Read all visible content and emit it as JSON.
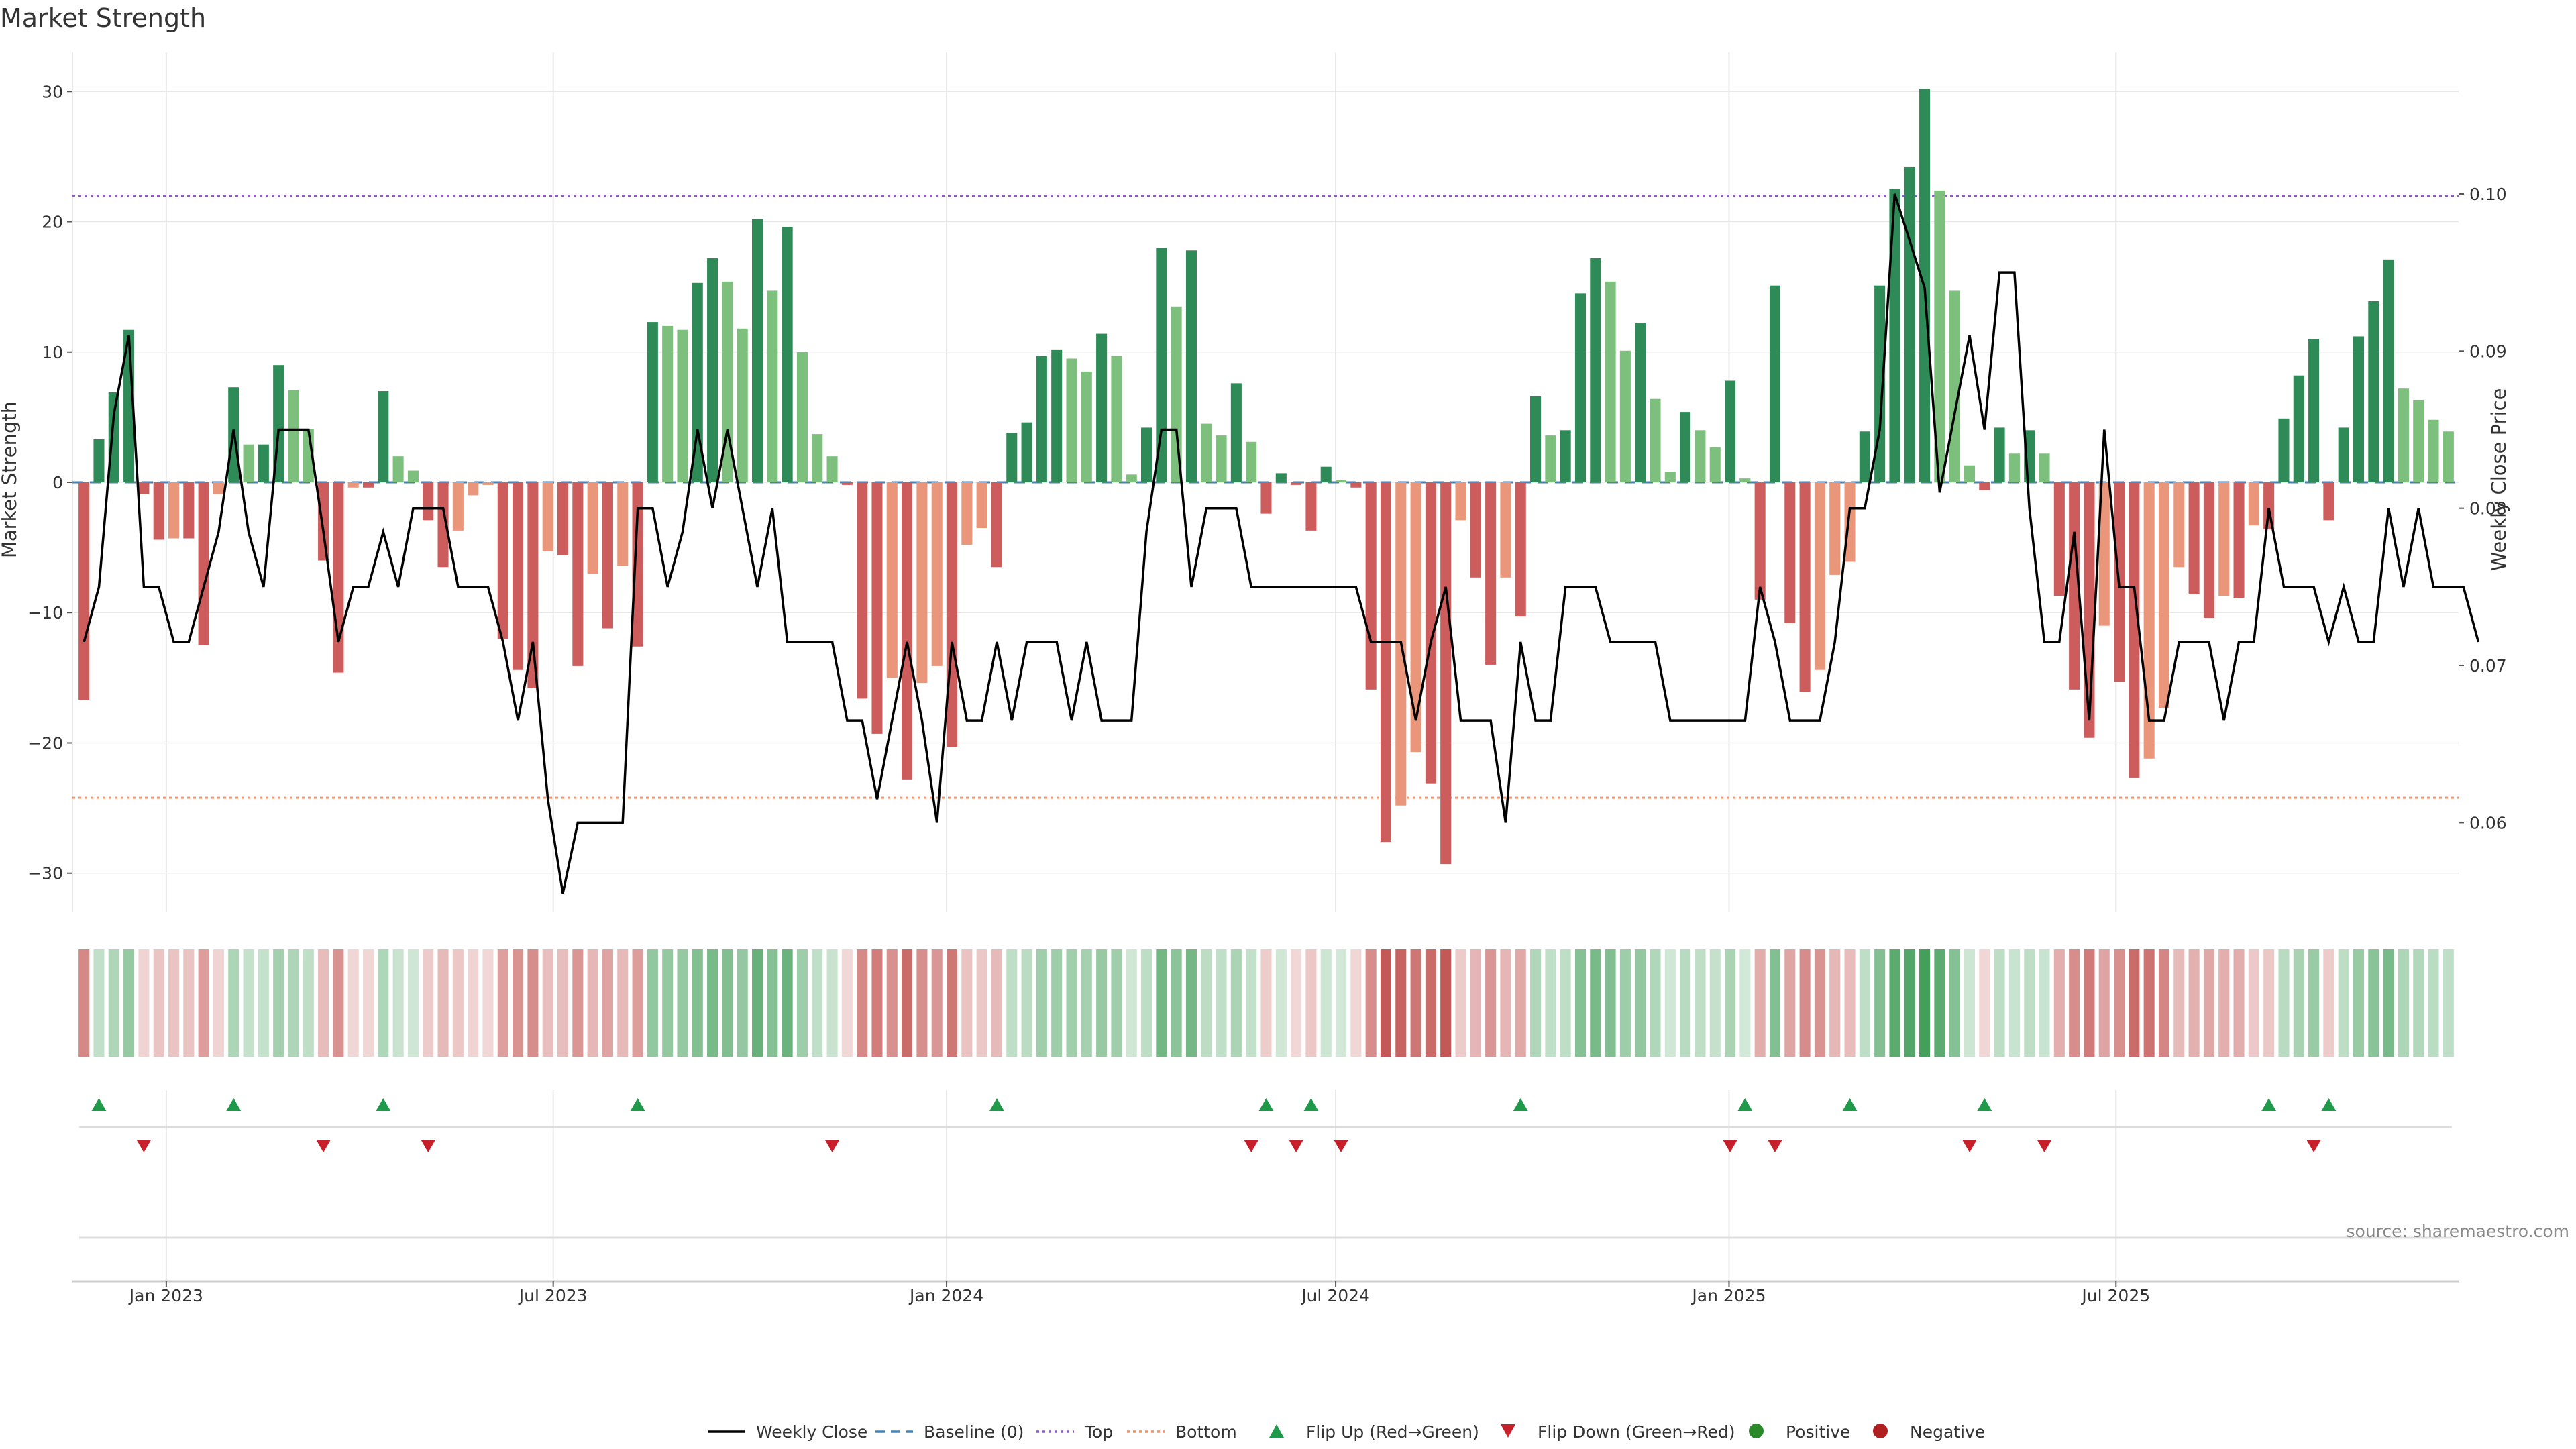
{
  "chart_data": {
    "type": "bar",
    "title": "Market Strength",
    "ylabel": "Market Strength",
    "y2label": "Weekly Close Price",
    "ylim": [
      -33,
      33
    ],
    "y2lim": [
      0.0543,
      0.109
    ],
    "yticks": [
      30,
      20,
      10,
      0,
      -10,
      -20,
      -30
    ],
    "ytick_labels": [
      "30",
      "20",
      "10",
      "0",
      "−10",
      "−20",
      "−30"
    ],
    "y2ticks": [
      0.1,
      0.09,
      0.08,
      0.07,
      0.06
    ],
    "y2tick_labels": [
      "0.10",
      "0.09",
      "0.08",
      "0.07",
      "0.06"
    ],
    "x_start": "2022-11-20",
    "week_days": 7,
    "xticks": [
      {
        "label": "Jan 2023",
        "day": 42
      },
      {
        "label": "Jul 2023",
        "day": 223
      },
      {
        "label": "Jan 2024",
        "day": 407
      },
      {
        "label": "Jul 2024",
        "day": 589
      },
      {
        "label": "Jan 2025",
        "day": 773
      },
      {
        "label": "Jul 2025",
        "day": 954
      }
    ],
    "top_level": 22,
    "bottom_level": -24.2,
    "strength_values": [
      -16.7,
      3.3,
      6.9,
      11.7,
      -0.9,
      -4.4,
      -4.3,
      -4.3,
      -12.5,
      -0.9,
      7.3,
      2.9,
      2.9,
      9.0,
      7.1,
      4.1,
      -6.0,
      -14.6,
      -0.4,
      -0.4,
      7.0,
      2.0,
      0.9,
      -2.9,
      -6.5,
      -3.7,
      -1.0,
      -0.2,
      -12.0,
      -14.4,
      -15.8,
      -5.3,
      -5.6,
      -14.1,
      -7.0,
      -11.2,
      -6.4,
      -12.6,
      12.3,
      12.0,
      11.7,
      15.3,
      17.2,
      15.4,
      11.8,
      20.2,
      14.7,
      19.6,
      10.0,
      3.7,
      2.0,
      -0.2,
      -16.6,
      -19.3,
      -15.0,
      -22.8,
      -15.4,
      -14.1,
      -20.3,
      -4.8,
      -3.5,
      -6.5,
      3.8,
      4.6,
      9.7,
      10.2,
      9.5,
      8.5,
      11.4,
      9.7,
      0.6,
      4.2,
      18.0,
      13.5,
      17.8,
      4.5,
      3.6,
      7.6,
      3.1,
      -2.4,
      0.7,
      -0.2,
      -3.7,
      1.2,
      0.2,
      -0.4,
      -15.9,
      -27.6,
      -24.8,
      -20.7,
      -23.1,
      -29.3,
      -2.9,
      -7.3,
      -14.0,
      -7.3,
      -10.3,
      6.6,
      3.6,
      4.0,
      14.5,
      17.2,
      15.4,
      10.1,
      12.2,
      6.4,
      0.8,
      5.4,
      4.0,
      2.7,
      7.8,
      0.3,
      -9.0,
      15.1,
      -10.8,
      -16.1,
      -14.4,
      -7.1,
      -6.1,
      3.9,
      15.1,
      22.5,
      24.2,
      30.2,
      22.4,
      14.7,
      1.3,
      -0.6,
      4.2,
      2.2,
      4.0,
      2.2,
      -8.7,
      -15.9,
      -19.6,
      -11.0,
      -15.3,
      -22.7,
      -21.2,
      -17.3,
      -6.5,
      -8.6,
      -10.4,
      -8.7,
      -8.9,
      -3.3,
      -3.6,
      4.9,
      8.2,
      11.0,
      -2.9,
      4.2,
      11.2,
      13.9,
      17.1,
      7.2,
      6.3,
      4.8,
      3.9
    ],
    "weekly_close": [
      0.0715,
      0.075,
      0.086,
      0.091,
      0.075,
      0.075,
      0.0715,
      0.0715,
      0.075,
      0.0785,
      0.085,
      0.0785,
      0.075,
      0.085,
      0.085,
      0.085,
      0.0785,
      0.0715,
      0.075,
      0.075,
      0.0785,
      0.075,
      0.08,
      0.08,
      0.08,
      0.075,
      0.075,
      0.075,
      0.0715,
      0.0665,
      0.0715,
      0.0615,
      0.0555,
      0.06,
      0.06,
      0.06,
      0.06,
      0.08,
      0.08,
      0.075,
      0.0785,
      0.085,
      0.08,
      0.085,
      0.08,
      0.075,
      0.08,
      0.0715,
      0.0715,
      0.0715,
      0.0715,
      0.0665,
      0.0665,
      0.0615,
      0.0665,
      0.0715,
      0.0665,
      0.06,
      0.0715,
      0.0665,
      0.0665,
      0.0715,
      0.0665,
      0.0715,
      0.0715,
      0.0715,
      0.0665,
      0.0715,
      0.0665,
      0.0665,
      0.0665,
      0.0785,
      0.085,
      0.085,
      0.075,
      0.08,
      0.08,
      0.08,
      0.075,
      0.075,
      0.075,
      0.075,
      0.075,
      0.075,
      0.075,
      0.075,
      0.0715,
      0.0715,
      0.0715,
      0.0665,
      0.0715,
      0.075,
      0.0665,
      0.0665,
      0.0665,
      0.06,
      0.0715,
      0.0665,
      0.0665,
      0.075,
      0.075,
      0.075,
      0.0715,
      0.0715,
      0.0715,
      0.0715,
      0.0665,
      0.0665,
      0.0665,
      0.0665,
      0.0665,
      0.0665,
      0.075,
      0.0715,
      0.0665,
      0.0665,
      0.0665,
      0.0715,
      0.08,
      0.08,
      0.085,
      0.1,
      0.097,
      0.094,
      0.081,
      0.086,
      0.091,
      0.085,
      0.095,
      0.095,
      0.08,
      0.0715,
      0.0715,
      0.0785,
      0.0665,
      0.085,
      0.075,
      0.075,
      0.0665,
      0.0665,
      0.0715,
      0.0715,
      0.0715,
      0.0665,
      0.0715,
      0.0715,
      0.08,
      0.075,
      0.075,
      0.075,
      0.0715,
      0.075,
      0.0715,
      0.0715,
      0.08,
      0.075,
      0.08,
      0.075,
      0.075,
      0.075,
      0.0715
    ],
    "flip_up_weeks": [
      1,
      10,
      20,
      37,
      61,
      79,
      82,
      96,
      111,
      118,
      127,
      146,
      150
    ],
    "flip_down_weeks": [
      4,
      16,
      23,
      50,
      78,
      81,
      84,
      110,
      113,
      126,
      131,
      149
    ],
    "legend": [
      "Weekly Close",
      "Baseline (0)",
      "Top",
      "Bottom",
      "Flip Up (Red→Green)",
      "Flip Down (Green→Red)",
      "Positive",
      "Negative"
    ],
    "legend_placement": "bottom-center",
    "source": "source: sharemaestro.com",
    "colors": {
      "strong_green": "#2e8b57",
      "light_green": "#7dbf7d",
      "strong_red": "#cd5c5c",
      "light_red": "#e9967a",
      "close_line": "#000000",
      "baseline": "#4682b4",
      "top": "#8a5cc4",
      "bottom": "#f0906c",
      "flip_up": "#1e9a4a",
      "flip_down": "#c8202a",
      "positive": "#2a8a2a",
      "negative": "#b02020",
      "grid": "#e8e8e8",
      "axis": "#cccccc"
    }
  }
}
